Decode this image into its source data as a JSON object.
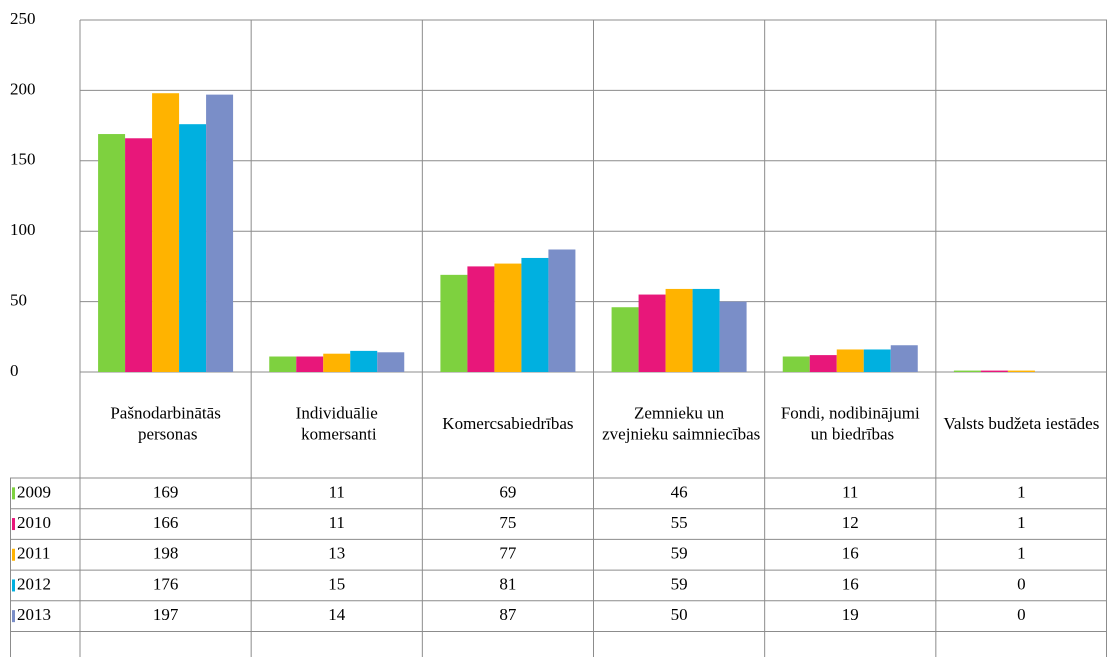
{
  "chart_data": {
    "type": "bar",
    "categories": [
      "Pašnodarbinātās personas",
      "Individuālie komersanti",
      "Komercsabiedrības",
      "Zemnieku un zvejnieku saimniecības",
      "Fondi, nodibinājumi un biedrības",
      "Valsts budžeta iestādes"
    ],
    "series": [
      {
        "name": "2009",
        "color": "#7ed13f",
        "values": [
          169,
          11,
          69,
          46,
          11,
          1
        ]
      },
      {
        "name": "2010",
        "color": "#e8177a",
        "values": [
          166,
          11,
          75,
          55,
          12,
          1
        ]
      },
      {
        "name": "2011",
        "color": "#ffb300",
        "values": [
          198,
          13,
          77,
          59,
          16,
          1
        ]
      },
      {
        "name": "2012",
        "color": "#00b0e0",
        "values": [
          176,
          15,
          81,
          59,
          16,
          0
        ]
      },
      {
        "name": "2013",
        "color": "#7a8ec8",
        "values": [
          197,
          14,
          87,
          50,
          19,
          0
        ]
      }
    ],
    "ylim": [
      0,
      250
    ],
    "yticks": [
      0,
      50,
      100,
      150,
      200,
      250
    ],
    "grid": true
  }
}
